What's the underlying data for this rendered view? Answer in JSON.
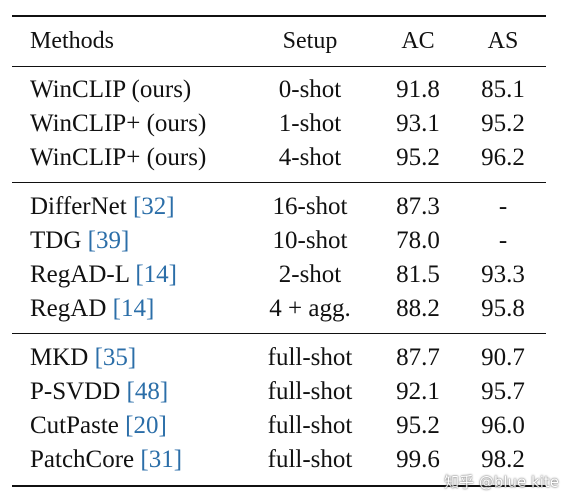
{
  "header": {
    "method": "Methods",
    "setup": "Setup",
    "ac": "AC",
    "as": "AS"
  },
  "groups": [
    {
      "rows": [
        {
          "name": "WinCLIP (ours)",
          "ref": "",
          "setup": "0-shot",
          "ac": "91.8",
          "as": "85.1"
        },
        {
          "name": "WinCLIP+ (ours)",
          "ref": "",
          "setup": "1-shot",
          "ac": "93.1",
          "as": "95.2"
        },
        {
          "name": "WinCLIP+ (ours)",
          "ref": "",
          "setup": "4-shot",
          "ac": "95.2",
          "as": "96.2"
        }
      ]
    },
    {
      "rows": [
        {
          "name": "DifferNet",
          "ref": "[32]",
          "setup": "16-shot",
          "ac": "87.3",
          "as": "-"
        },
        {
          "name": "TDG",
          "ref": "[39]",
          "setup": "10-shot",
          "ac": "78.0",
          "as": "-"
        },
        {
          "name": "RegAD-L",
          "ref": "[14]",
          "setup": "2-shot",
          "ac": "81.5",
          "as": "93.3"
        },
        {
          "name": "RegAD",
          "ref": "[14]",
          "setup": "4 + agg.",
          "ac": "88.2",
          "as": "95.8"
        }
      ]
    },
    {
      "rows": [
        {
          "name": "MKD",
          "ref": "[35]",
          "setup": "full-shot",
          "ac": "87.7",
          "as": "90.7"
        },
        {
          "name": "P-SVDD",
          "ref": "[48]",
          "setup": "full-shot",
          "ac": "92.1",
          "as": "95.7"
        },
        {
          "name": "CutPaste",
          "ref": "[20]",
          "setup": "full-shot",
          "ac": "95.2",
          "as": "96.0"
        },
        {
          "name": "PatchCore",
          "ref": "[31]",
          "setup": "full-shot",
          "ac": "99.6",
          "as": "98.2"
        }
      ]
    }
  ],
  "watermark": "知乎 @blue kite",
  "colors": {
    "text": "#111111",
    "reference_link": "#2b6ea8"
  }
}
